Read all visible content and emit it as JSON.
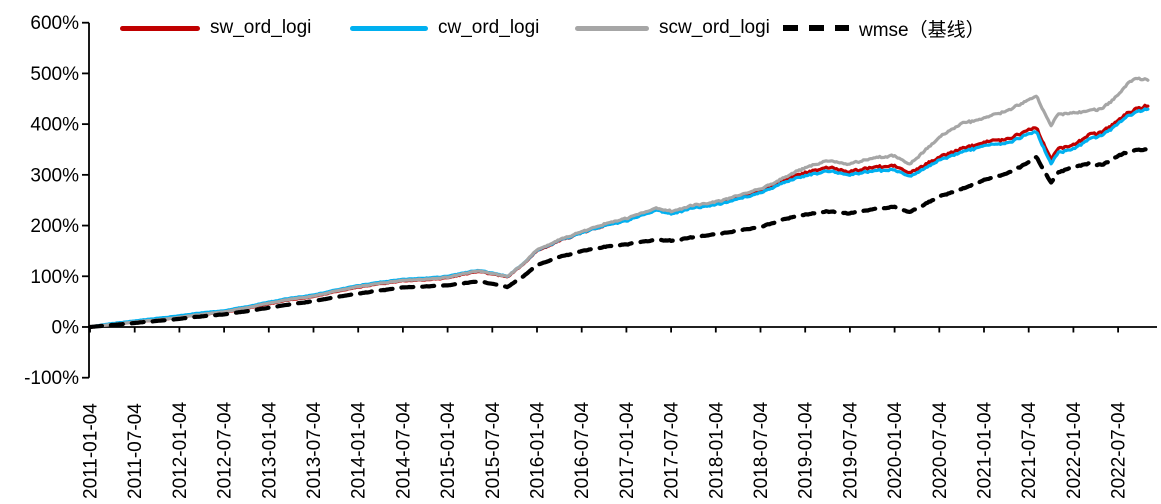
{
  "chart_data": {
    "type": "line",
    "title": "",
    "xlabel": "",
    "ylabel": "",
    "grid": "off",
    "legend_position": "top",
    "y_axis": {
      "min": -100,
      "max": 600,
      "unit": "%",
      "tick_labels": [
        "600%",
        "500%",
        "400%",
        "300%",
        "200%",
        "100%",
        "0%",
        "-100%"
      ]
    },
    "x_axis": {
      "tick_interval": "6 months",
      "tick_labels": [
        "2011-01-04",
        "2011-07-04",
        "2012-01-04",
        "2012-07-04",
        "2013-01-04",
        "2013-07-04",
        "2014-01-04",
        "2014-07-04",
        "2015-01-04",
        "2015-07-04",
        "2016-01-04",
        "2016-07-04",
        "2017-01-04",
        "2017-07-04",
        "2018-01-04",
        "2018-07-04",
        "2019-01-04",
        "2019-07-04",
        "2020-01-04",
        "2020-07-04",
        "2021-01-04",
        "2021-07-04",
        "2022-01-04",
        "2022-07-04"
      ]
    },
    "keypoint_dates": [
      "2011-01",
      "2011-04",
      "2011-07",
      "2011-10",
      "2012-01",
      "2012-04",
      "2012-07",
      "2012-10",
      "2013-01",
      "2013-04",
      "2013-07",
      "2013-10",
      "2014-01",
      "2014-04",
      "2014-07",
      "2014-10",
      "2015-01",
      "2015-05",
      "2015-07",
      "2015-09",
      "2015-11",
      "2016-01",
      "2016-04",
      "2016-07",
      "2016-10",
      "2017-01",
      "2017-05",
      "2017-07",
      "2017-10",
      "2018-01",
      "2018-04",
      "2018-07",
      "2018-10",
      "2019-01",
      "2019-04",
      "2019-07",
      "2019-10",
      "2020-01",
      "2020-03",
      "2020-07",
      "2020-10",
      "2021-01",
      "2021-04",
      "2021-07",
      "2021-08",
      "2021-10",
      "2021-11",
      "2022-01",
      "2022-03",
      "2022-05",
      "2022-07",
      "2022-09",
      "2022-11"
    ],
    "series": [
      {
        "name": "sw_ord_logi",
        "color": "#C00000",
        "style": "solid",
        "values_pct": [
          0,
          5,
          10,
          14,
          19,
          25,
          29,
          37,
          46,
          54,
          60,
          70,
          79,
          85,
          91,
          93,
          97,
          110,
          104,
          99,
          122,
          150,
          170,
          186,
          200,
          210,
          232,
          225,
          237,
          243,
          255,
          267,
          288,
          305,
          315,
          306,
          315,
          318,
          303,
          336,
          352,
          365,
          370,
          389,
          394,
          330,
          352,
          359,
          378,
          386,
          408,
          428,
          436
        ]
      },
      {
        "name": "cw_ord_logi",
        "color": "#00B0F0",
        "style": "solid",
        "values_pct": [
          0,
          7,
          12,
          17,
          22,
          28,
          32,
          40,
          49,
          57,
          63,
          73,
          82,
          88,
          94,
          96,
          100,
          112,
          106,
          100,
          123,
          151,
          171,
          186,
          200,
          209,
          230,
          223,
          235,
          241,
          252,
          264,
          284,
          299,
          308,
          300,
          308,
          310,
          296,
          330,
          345,
          358,
          362,
          381,
          386,
          321,
          344,
          351,
          370,
          379,
          402,
          422,
          430
        ]
      },
      {
        "name": "scw_ord_logi",
        "color": "#A6A6A6",
        "style": "solid",
        "values_pct": [
          0,
          5,
          10,
          14,
          19,
          25,
          30,
          38,
          47,
          55,
          61,
          71,
          80,
          86,
          92,
          94,
          98,
          111,
          105,
          100,
          123,
          152,
          172,
          188,
          203,
          214,
          234,
          228,
          240,
          247,
          259,
          272,
          293,
          315,
          328,
          321,
          333,
          338,
          320,
          375,
          402,
          412,
          426,
          448,
          456,
          396,
          420,
          422,
          426,
          432,
          458,
          490,
          487
        ]
      },
      {
        "name": "wmse（基线）",
        "color": "#000000",
        "style": "dashed",
        "values_pct": [
          0,
          4,
          8,
          12,
          16,
          21,
          25,
          31,
          38,
          45,
          51,
          59,
          66,
          72,
          78,
          80,
          82,
          90,
          85,
          79,
          98,
          122,
          138,
          150,
          158,
          163,
          172,
          170,
          177,
          183,
          190,
          197,
          212,
          222,
          228,
          224,
          232,
          237,
          226,
          258,
          272,
          290,
          302,
          325,
          336,
          284,
          305,
          316,
          322,
          320,
          338,
          348,
          350
        ]
      }
    ]
  }
}
